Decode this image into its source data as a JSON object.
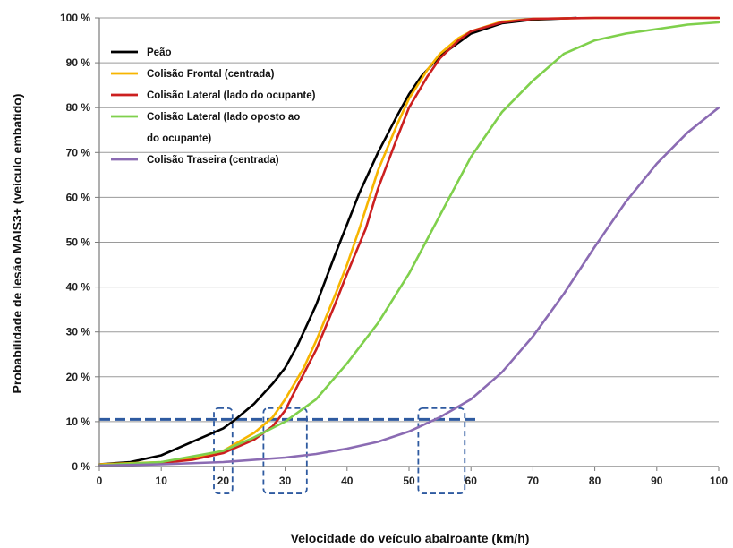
{
  "chart_data": {
    "type": "line",
    "xlabel": "Velocidade do veículo abalroante  (km/h)",
    "ylabel": "Probabilidade de lesão MAIS3+ (veículo embatido)",
    "xlim": [
      0,
      100
    ],
    "ylim": [
      0,
      100
    ],
    "x_ticks": [
      "0",
      "10",
      "20",
      "30",
      "40",
      "50",
      "60",
      "70",
      "80",
      "90",
      "100"
    ],
    "y_ticks": [
      "0 %",
      "10 %",
      "20 %",
      "30 %",
      "40 %",
      "50 %",
      "60 %",
      "70 %",
      "80 %",
      "90 %",
      "100 %"
    ],
    "grid": "horizontal",
    "legend_position": "top-left",
    "series": [
      {
        "name": "Peão",
        "color": "#000000",
        "x": [
          0,
          5,
          10,
          15,
          20,
          22,
          25,
          28,
          30,
          32,
          35,
          38,
          40,
          42,
          45,
          48,
          50,
          52,
          55,
          58,
          60,
          65,
          70,
          77
        ],
        "y": [
          0.5,
          1,
          2.5,
          5.5,
          8.5,
          10.5,
          14,
          18.5,
          22,
          27,
          36,
          47,
          54,
          61,
          70,
          78,
          83,
          87,
          91.5,
          94.5,
          96.5,
          98.8,
          99.6,
          100
        ]
      },
      {
        "name": "Colisão Frontal (centrada)",
        "color": "#f7b500",
        "x": [
          0,
          10,
          15,
          20,
          25,
          28,
          30,
          33,
          35,
          38,
          40,
          42,
          45,
          48,
          50,
          53,
          55,
          58,
          60,
          65,
          70,
          80,
          100
        ],
        "y": [
          0.5,
          1,
          1.8,
          3.5,
          7.5,
          11,
          15,
          22,
          28,
          38,
          45,
          53,
          66,
          76,
          82,
          88.5,
          92,
          95.5,
          97,
          99.2,
          99.8,
          100,
          100
        ]
      },
      {
        "name": "Colisão Lateral (lado do ocupante)",
        "color": "#cc1f1f",
        "x": [
          0,
          10,
          15,
          20,
          25,
          28,
          30,
          32,
          35,
          38,
          40,
          43,
          45,
          48,
          50,
          53,
          55,
          58,
          60,
          65,
          70,
          80,
          100
        ],
        "y": [
          0.3,
          0.8,
          1.5,
          3,
          6,
          9,
          12.5,
          18,
          26,
          36,
          43,
          53,
          62,
          73,
          80,
          87,
          91,
          95,
          97,
          99,
          99.8,
          100,
          100
        ]
      },
      {
        "name": "Colisão Lateral (lado oposto ao do ocupante)",
        "color": "#7fd04c",
        "x": [
          0,
          10,
          20,
          25,
          30,
          35,
          40,
          45,
          50,
          55,
          60,
          65,
          70,
          75,
          80,
          85,
          90,
          95,
          100
        ],
        "y": [
          0.3,
          1,
          3.5,
          6.5,
          10,
          15,
          23,
          32,
          43,
          56,
          69,
          79,
          86,
          92,
          95,
          96.5,
          97.5,
          98.5,
          99
        ]
      },
      {
        "name": "Colisão Traseira (centrada)",
        "color": "#8b6bb3",
        "x": [
          0,
          10,
          20,
          30,
          35,
          40,
          45,
          50,
          55,
          60,
          65,
          70,
          75,
          80,
          85,
          90,
          95,
          100
        ],
        "y": [
          0.2,
          0.5,
          1,
          2,
          2.8,
          4,
          5.5,
          7.8,
          11,
          15,
          21,
          29,
          38.5,
          49,
          59,
          67.5,
          74.5,
          80
        ]
      }
    ],
    "legend": [
      "Peão",
      "Colisão Frontal (centrada)",
      "Colisão Lateral (lado do ocupante)",
      "Colisão Lateral (lado oposto ao",
      "do ocupante)",
      "Colisão Traseira (centrada)"
    ],
    "annotations": {
      "threshold_y": 10.5,
      "threshold_x_range": [
        0,
        61
      ],
      "threshold_color": "#2e5aa0",
      "boxes": [
        {
          "x": [
            18.5,
            21.5
          ],
          "y": [
            -6,
            13
          ]
        },
        {
          "x": [
            26.5,
            33.5
          ],
          "y": [
            -6,
            13
          ]
        },
        {
          "x": [
            51.5,
            59
          ],
          "y": [
            -6,
            13
          ]
        }
      ]
    }
  }
}
